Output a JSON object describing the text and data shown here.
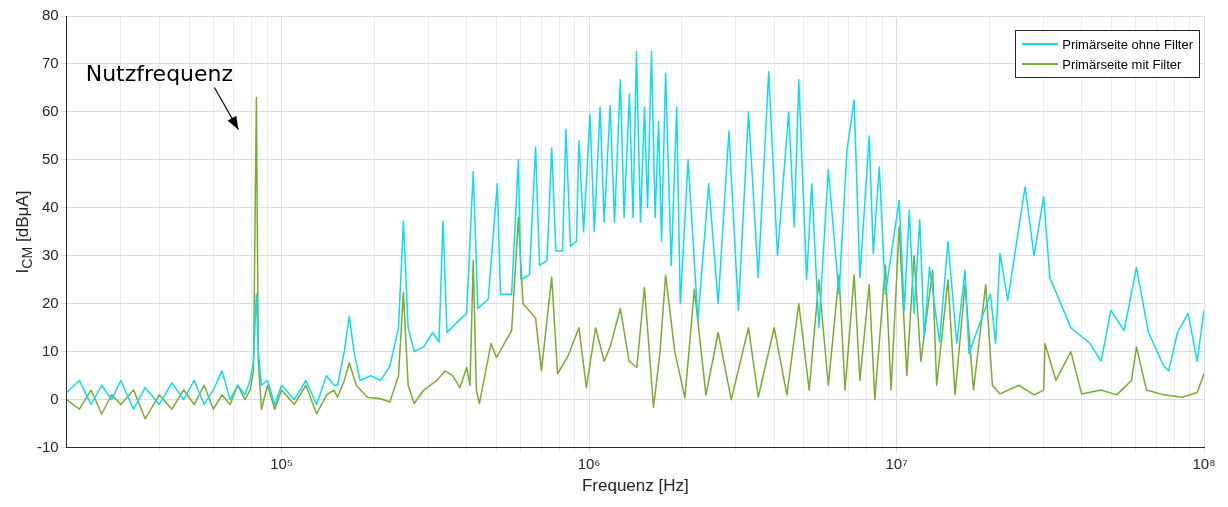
{
  "chart_data": {
    "type": "line",
    "xlabel": "Frequenz [Hz]",
    "ylabel": "I$_{CM}$ [dBμA]",
    "log": "x",
    "grid": true,
    "legend": "top right",
    "marker": "none",
    "line_style": "solid",
    "xlim": [
      20000,
      100000000
    ],
    "xticks": [
      {
        "value": 30000,
        "label": null
      },
      {
        "value": 40000,
        "label": null
      },
      {
        "value": 50000,
        "label": null
      },
      {
        "value": 60000,
        "label": null
      },
      {
        "value": 70000,
        "label": null
      },
      {
        "value": 80000,
        "label": null
      },
      {
        "value": 90000,
        "label": null
      },
      {
        "value": 100000,
        "label": "10⁵"
      },
      {
        "value": 200000,
        "label": null
      },
      {
        "value": 300000,
        "label": null
      },
      {
        "value": 400000,
        "label": null
      },
      {
        "value": 500000,
        "label": null
      },
      {
        "value": 600000,
        "label": null
      },
      {
        "value": 700000,
        "label": null
      },
      {
        "value": 800000,
        "label": null
      },
      {
        "value": 900000,
        "label": null
      },
      {
        "value": 1000000,
        "label": "10⁶"
      },
      {
        "value": 2000000,
        "label": null
      },
      {
        "value": 3000000,
        "label": null
      },
      {
        "value": 4000000,
        "label": null
      },
      {
        "value": 5000000,
        "label": null
      },
      {
        "value": 6000000,
        "label": null
      },
      {
        "value": 7000000,
        "label": null
      },
      {
        "value": 8000000,
        "label": null
      },
      {
        "value": 9000000,
        "label": null
      },
      {
        "value": 10000000,
        "label": "10⁷"
      },
      {
        "value": 20000000,
        "label": null
      },
      {
        "value": 30000000,
        "label": null
      },
      {
        "value": 40000000,
        "label": null
      },
      {
        "value": 50000000,
        "label": null
      },
      {
        "value": 60000000,
        "label": null
      },
      {
        "value": 70000000,
        "label": null
      },
      {
        "value": 80000000,
        "label": null
      },
      {
        "value": 90000000,
        "label": null
      },
      {
        "value": 100000000,
        "label": "10⁸"
      }
    ],
    "ylim": [
      -10,
      80
    ],
    "yticks": [
      -10,
      0,
      10,
      20,
      30,
      40,
      50,
      60,
      70,
      80
    ],
    "annotations": [
      {
        "text": "Nutzfrequenz",
        "x": 82800,
        "y": 63
      }
    ],
    "series": [
      {
        "name": "Primärseite ohne Filter",
        "color": "#0ddcef",
        "x": [
          20000,
          22000,
          24000,
          26000,
          28000,
          30000,
          33000,
          36000,
          40000,
          44000,
          48000,
          52000,
          56000,
          60000,
          64000,
          68000,
          72000,
          76000,
          79000,
          81000,
          82800,
          84000,
          86000,
          90000,
          95000,
          100000,
          110000,
          120000,
          130000,
          140000,
          148000,
          152000,
          160000,
          166000,
          172000,
          180000,
          195000,
          210000,
          225000,
          240000,
          249000,
          258000,
          270000,
          290000,
          310000,
          325000,
          335000,
          345000,
          370000,
          400000,
          420000,
          435000,
          470000,
          503000,
          515000,
          560000,
          589000,
          600000,
          640000,
          670000,
          690000,
          730000,
          756000,
          780000,
          820000,
          841000,
          870000,
          910000,
          927000,
          960000,
          1007000,
          1040000,
          1086000,
          1120000,
          1171000,
          1210000,
          1264000,
          1300000,
          1353000,
          1390000,
          1426000,
          1470000,
          1514000,
          1550000,
          1596000,
          1640000,
          1683000,
          1720000,
          1774000,
          1850000,
          1928000,
          1980000,
          2100000,
          2260000,
          2450000,
          2630000,
          2850000,
          3060000,
          3300000,
          3550000,
          3840000,
          4100000,
          4460000,
          4650000,
          4810000,
          5100000,
          5300000,
          5590000,
          6000000,
          6500000,
          6900000,
          7280000,
          7600000,
          8150000,
          8400000,
          8790000,
          9200000,
          10200000,
          10600000,
          11000000,
          11400000,
          11900000,
          12300000,
          12800000,
          13800000,
          14700000,
          15700000,
          16700000,
          17200000,
          20200000,
          21000000,
          21700000,
          23000000,
          26200000,
          28000000,
          30100000,
          31500000,
          36900000,
          42600000,
          46300000,
          49800000,
          55000000,
          60300000,
          66000000,
          74000000,
          76800000,
          82000000,
          88800000,
          95000000,
          100000000
        ],
        "values": [
          1.5,
          4,
          -1,
          3,
          0,
          4,
          -2,
          2.5,
          -1,
          3.5,
          0,
          4,
          -1,
          2,
          6,
          0,
          3,
          1,
          4,
          8,
          22,
          10,
          3,
          4,
          -1,
          3,
          0,
          4,
          -1,
          5,
          3,
          3,
          10,
          17.4,
          10,
          4,
          5,
          4,
          7,
          15,
          37.2,
          15,
          10,
          11,
          14,
          12,
          37.2,
          14,
          16,
          18,
          47.5,
          19,
          21,
          45,
          22,
          22,
          50,
          25,
          26,
          52.7,
          28,
          29,
          52.5,
          31,
          31,
          56.3,
          32,
          33,
          54,
          35,
          59.4,
          35,
          61,
          37,
          61.3,
          37,
          66.7,
          38,
          63.8,
          38,
          72.6,
          37,
          61,
          40,
          72.6,
          38,
          58,
          33,
          68,
          28,
          61,
          20,
          50,
          16.5,
          45,
          20,
          56,
          18.6,
          60,
          25.5,
          68.4,
          30,
          60,
          36,
          66.7,
          25,
          45,
          15,
          48,
          22,
          52,
          62.5,
          25.5,
          55,
          30.5,
          48.5,
          22,
          41.6,
          18.6,
          39.5,
          18,
          37.5,
          13,
          27.6,
          12,
          33,
          11.7,
          27,
          9.6,
          22,
          11.7,
          30.5,
          20.7,
          44.4,
          30,
          42.3,
          25.5,
          15,
          11.7,
          8,
          18.6,
          14.4,
          27.6,
          14,
          7,
          6,
          14,
          18,
          8,
          18.6
        ]
      },
      {
        "name": "Primärseite mit Filter",
        "color": "#77ac30",
        "x": [
          20000,
          22000,
          24000,
          26000,
          28000,
          30000,
          33000,
          36000,
          40000,
          44000,
          48000,
          52000,
          56000,
          60000,
          64000,
          68000,
          72000,
          76000,
          79000,
          81000,
          82800,
          84000,
          86000,
          90000,
          95000,
          100000,
          110000,
          120000,
          130000,
          140000,
          148000,
          152000,
          160000,
          166000,
          175000,
          190000,
          210000,
          225000,
          240000,
          249000,
          258000,
          270000,
          290000,
          320000,
          340000,
          360000,
          380000,
          400000,
          410000,
          420000,
          430000,
          440000,
          480000,
          500000,
          560000,
          589000,
          610000,
          670000,
          700000,
          756000,
          790000,
          850000,
          927000,
          980000,
          1050000,
          1120000,
          1171000,
          1264000,
          1350000,
          1430000,
          1514000,
          1620000,
          1700000,
          1774000,
          1900000,
          2050000,
          2200000,
          2400000,
          2630000,
          2900000,
          3300000,
          3550000,
          4000000,
          4400000,
          4810000,
          5200000,
          5590000,
          6000000,
          6500000,
          6800000,
          7280000,
          7600000,
          8150000,
          8500000,
          9200000,
          9600000,
          10200000,
          10800000,
          11400000,
          12000000,
          13100000,
          13500000,
          14700000,
          15500000,
          16700000,
          17800000,
          19500000,
          20500000,
          21700000,
          25000000,
          28000000,
          30100000,
          30400000,
          33000000,
          36900000,
          40000000,
          46300000,
          52000000,
          58100000,
          60300000,
          65000000,
          74000000,
          85000000,
          95000000,
          100000000
        ],
        "values": [
          0,
          -2,
          2,
          -3,
          1,
          -1,
          2,
          -4,
          1,
          -2,
          2,
          -1,
          3,
          -2,
          1,
          -1,
          3,
          0,
          2,
          6,
          63,
          8,
          -2,
          3,
          -2,
          2,
          -1,
          3,
          -3,
          1,
          2,
          0.5,
          4,
          7.7,
          3,
          0.5,
          0.2,
          -0.5,
          5,
          22.4,
          3,
          -0.8,
          2,
          4,
          6,
          5,
          2.5,
          6.7,
          3,
          29,
          2,
          -0.8,
          11.7,
          8.8,
          14.4,
          38,
          20,
          17,
          6,
          25.5,
          5.4,
          8.8,
          15,
          2.5,
          15,
          8,
          11,
          19,
          8,
          6.7,
          23.4,
          -1.6,
          9.6,
          26,
          10,
          0.4,
          23,
          1,
          14,
          0,
          15,
          0.5,
          15,
          1,
          20,
          2,
          25,
          3,
          26,
          2,
          26,
          4,
          24,
          0,
          28,
          2,
          36,
          5,
          30,
          8,
          27,
          3,
          25,
          1,
          24,
          2,
          24,
          3,
          1.2,
          3,
          1,
          2,
          11.7,
          4,
          10,
          1.2,
          2,
          1,
          4,
          11,
          2,
          1,
          0.5,
          1.5,
          5.4
        ]
      }
    ]
  }
}
